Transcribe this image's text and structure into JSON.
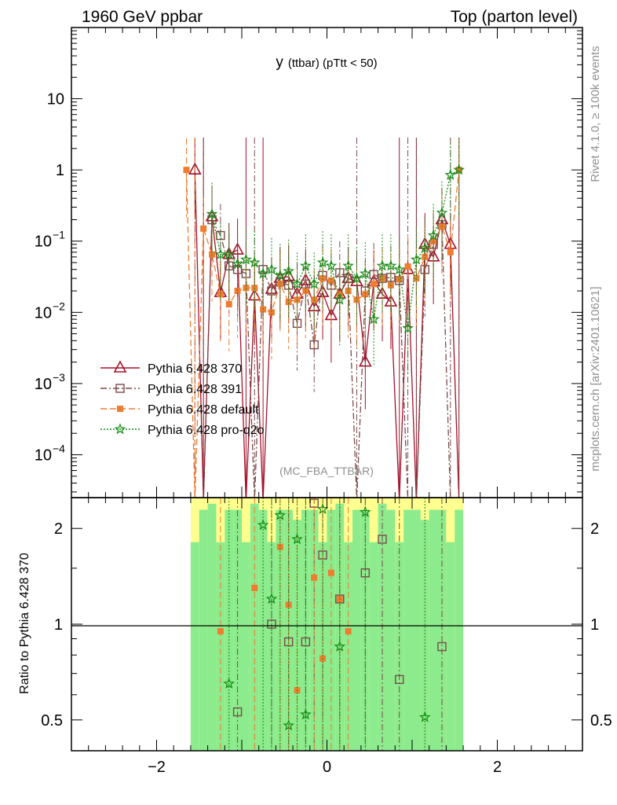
{
  "header": {
    "left": "1960 GeV ppbar",
    "right": "Top (parton level)"
  },
  "side_labels": {
    "rivet": "Rivet 4.1.0, ≥ 100k events",
    "mcplots": "mcplots.cern.ch [arXiv:2401.10621]"
  },
  "chart_data": [
    {
      "type": "line",
      "panel": "main",
      "title": "y (ttbar) (pTtt < 50)",
      "title_main": "y",
      "title_sub": "(ttbar) (pTtt < 50)",
      "watermark": "(MC_FBA_TTBAR)",
      "yscale": "log",
      "xlim": [
        -3,
        3
      ],
      "ylim": [
        2.5e-05,
        100
      ],
      "x_ticks": [
        -2,
        0,
        2
      ],
      "y_ticks": [
        {
          "value": 10,
          "label": "10"
        },
        {
          "value": 1,
          "label": "1"
        },
        {
          "value": 0.1,
          "label": "10",
          "exp": "−1"
        },
        {
          "value": 0.01,
          "label": "10",
          "exp": "−2"
        },
        {
          "value": 0.001,
          "label": "10",
          "exp": "−3"
        },
        {
          "value": 0.0001,
          "label": "10",
          "exp": "−4"
        }
      ],
      "legend_position": "lower-left",
      "series": [
        {
          "name": "Pythia 6.428 370",
          "color": "#a5112a",
          "marker": "triangle",
          "dash": "",
          "x": [
            -1.55,
            -1.45,
            -1.35,
            -1.25,
            -1.15,
            -1.05,
            -0.95,
            -0.85,
            -0.75,
            -0.65,
            -0.55,
            -0.45,
            -0.35,
            -0.25,
            -0.15,
            -0.05,
            0.05,
            0.15,
            0.25,
            0.35,
            0.45,
            0.55,
            0.65,
            0.75,
            0.85,
            0.95,
            1.05,
            1.15,
            1.25,
            1.35,
            1.45,
            1.55
          ],
          "y": [
            1.0,
            0,
            0.22,
            0.019,
            0.065,
            0.075,
            0,
            0.017,
            0,
            0.021,
            0.03,
            0.032,
            0.018,
            0.028,
            0.012,
            0.019,
            0.009,
            0.018,
            0.03,
            0.027,
            0.002,
            0.027,
            0.018,
            0.014,
            0,
            0.04,
            0,
            0.09,
            0.06,
            0.2,
            0.09,
            0
          ]
        },
        {
          "name": "Pythia 6.428 391",
          "color": "#7a4b4b",
          "marker": "square",
          "dash": "8,3,2,3",
          "x": [
            -1.55,
            -1.45,
            -1.35,
            -1.25,
            -1.15,
            -1.05,
            -0.95,
            -0.85,
            -0.75,
            -0.65,
            -0.55,
            -0.45,
            -0.35,
            -0.25,
            -0.15,
            -0.05,
            0.05,
            0.15,
            0.25,
            0.35,
            0.45,
            0.55,
            0.65,
            0.75,
            0.85,
            0.95,
            1.05,
            1.15,
            1.25,
            1.35,
            1.45,
            1.55
          ],
          "y": [
            0,
            0,
            0.2,
            0.12,
            0.045,
            0.04,
            0.035,
            0,
            0.04,
            0.02,
            0.027,
            0.024,
            0.007,
            0.025,
            0.0035,
            0.033,
            0.024,
            0.036,
            0.03,
            0.0,
            0.02,
            0.034,
            0.03,
            0.031,
            0.028,
            0,
            0,
            0.04,
            0.09,
            0.17,
            0,
            0
          ]
        },
        {
          "name": "Pythia 6.428 default",
          "color": "#f07c30",
          "marker": "filled-square",
          "dash": "8,4",
          "x": [
            -1.65,
            -1.55,
            -1.45,
            -1.35,
            -1.25,
            -1.15,
            -1.05,
            -0.95,
            -0.85,
            -0.75,
            -0.65,
            -0.55,
            -0.45,
            -0.35,
            -0.25,
            -0.15,
            -0.05,
            0.05,
            0.15,
            0.25,
            0.35,
            0.45,
            0.55,
            0.65,
            0.75,
            0.85,
            0.95,
            1.05,
            1.15,
            1.25,
            1.35,
            1.45,
            1.55
          ],
          "y": [
            1.0,
            0,
            0.15,
            0.065,
            0.018,
            0.013,
            0.02,
            0.022,
            0.022,
            0.011,
            0.01,
            0.025,
            0.014,
            0.015,
            0.02,
            0.015,
            0.03,
            0.028,
            0.018,
            0.02,
            0.015,
            0.018,
            0.025,
            0.03,
            0.024,
            0.029,
            0.044,
            0.03,
            0.06,
            0.1,
            0.16,
            0.07,
            1.0
          ]
        },
        {
          "name": "Pythia 6.428 pro-q2o",
          "color": "#138c13",
          "marker": "star",
          "dash": "2,2",
          "x": [
            -1.35,
            -1.25,
            -1.15,
            -1.05,
            -0.95,
            -0.85,
            -0.75,
            -0.65,
            -0.55,
            -0.45,
            -0.35,
            -0.25,
            -0.15,
            -0.05,
            0.05,
            0.15,
            0.25,
            0.35,
            0.45,
            0.55,
            0.65,
            0.75,
            0.85,
            0.95,
            1.05,
            1.15,
            1.25,
            1.35,
            1.45,
            1.55
          ],
          "y": [
            0.24,
            0.065,
            0.065,
            0.048,
            0.055,
            0.05,
            0.035,
            0.04,
            0.033,
            0.038,
            0.025,
            0.045,
            0.025,
            0.05,
            0.045,
            0.015,
            0.045,
            0.03,
            0.035,
            0.008,
            0.045,
            0.045,
            0.04,
            0.006,
            0.055,
            0.08,
            0.12,
            0.25,
            0.85,
            1.0
          ]
        }
      ]
    },
    {
      "type": "line",
      "panel": "ratio",
      "ylabel": "Ratio to Pythia 6.428 370",
      "yscale": "log",
      "xlim": [
        -3,
        3
      ],
      "ylim": [
        0.4,
        2.5
      ],
      "x_ticks": [
        {
          "value": -2,
          "label": "−2"
        },
        {
          "value": 0,
          "label": "0"
        },
        {
          "value": 2,
          "label": "2"
        }
      ],
      "y_ticks": [
        {
          "value": 0.5,
          "label": "0.5"
        },
        {
          "value": 1,
          "label": "1"
        },
        {
          "value": 2,
          "label": "2"
        }
      ],
      "reference_line": 1,
      "band_x_range": [
        -1.6,
        1.6
      ],
      "series": [
        {
          "name": "Pythia 6.428 391",
          "x": [
            -1.05,
            -0.65,
            -0.45,
            -0.25,
            -0.15,
            -0.05,
            0.15,
            0.45,
            0.65,
            0.85,
            1.35
          ],
          "y": [
            0.53,
            1.0,
            0.88,
            0.88,
            2.4,
            1.65,
            1.2,
            1.45,
            1.85,
            0.67,
            0.85
          ]
        },
        {
          "name": "Pythia 6.428 default",
          "x": [
            -1.25,
            -0.85,
            -0.55,
            -0.45,
            -0.35,
            -0.15,
            -0.05,
            0.05,
            0.15,
            0.25
          ],
          "y": [
            0.95,
            1.3,
            1.75,
            1.15,
            0.62,
            1.4,
            0.78,
            1.45,
            1.2,
            0.95
          ]
        },
        {
          "name": "Pythia 6.428 pro-q2o",
          "x": [
            -1.15,
            -0.75,
            -0.65,
            -0.55,
            -0.45,
            -0.35,
            -0.25,
            -0.05,
            0.15,
            0.45,
            1.15
          ],
          "y": [
            0.65,
            2.05,
            1.2,
            2.2,
            0.48,
            1.85,
            0.52,
            2.3,
            0.85,
            2.25,
            0.51
          ]
        }
      ]
    }
  ]
}
